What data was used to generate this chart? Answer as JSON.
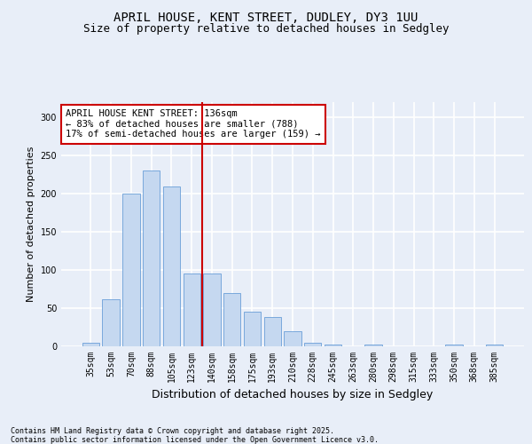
{
  "title_line1": "APRIL HOUSE, KENT STREET, DUDLEY, DY3 1UU",
  "title_line2": "Size of property relative to detached houses in Sedgley",
  "xlabel": "Distribution of detached houses by size in Sedgley",
  "ylabel": "Number of detached properties",
  "categories": [
    "35sqm",
    "53sqm",
    "70sqm",
    "88sqm",
    "105sqm",
    "123sqm",
    "140sqm",
    "158sqm",
    "175sqm",
    "193sqm",
    "210sqm",
    "228sqm",
    "245sqm",
    "263sqm",
    "280sqm",
    "298sqm",
    "315sqm",
    "333sqm",
    "350sqm",
    "368sqm",
    "385sqm"
  ],
  "values": [
    5,
    62,
    200,
    230,
    210,
    95,
    95,
    70,
    45,
    38,
    20,
    5,
    2,
    0,
    2,
    0,
    0,
    0,
    2,
    0,
    2
  ],
  "bar_color": "#c5d8f0",
  "bar_edge_color": "#6a9fd8",
  "red_line_index": 6,
  "highlight_color": "#cc0000",
  "annotation_text": "APRIL HOUSE KENT STREET: 136sqm\n← 83% of detached houses are smaller (788)\n17% of semi-detached houses are larger (159) →",
  "annotation_box_color": "white",
  "annotation_box_edge_color": "#cc0000",
  "ylim": [
    0,
    320
  ],
  "yticks": [
    0,
    50,
    100,
    150,
    200,
    250,
    300
  ],
  "footer_line1": "Contains HM Land Registry data © Crown copyright and database right 2025.",
  "footer_line2": "Contains public sector information licensed under the Open Government Licence v3.0.",
  "background_color": "#e8eef8",
  "plot_background_color": "#e8eef8",
  "grid_color": "white",
  "title_fontsize": 10,
  "subtitle_fontsize": 9,
  "ylabel_fontsize": 8,
  "xlabel_fontsize": 9,
  "tick_fontsize": 7,
  "footer_fontsize": 6,
  "annot_fontsize": 7.5
}
